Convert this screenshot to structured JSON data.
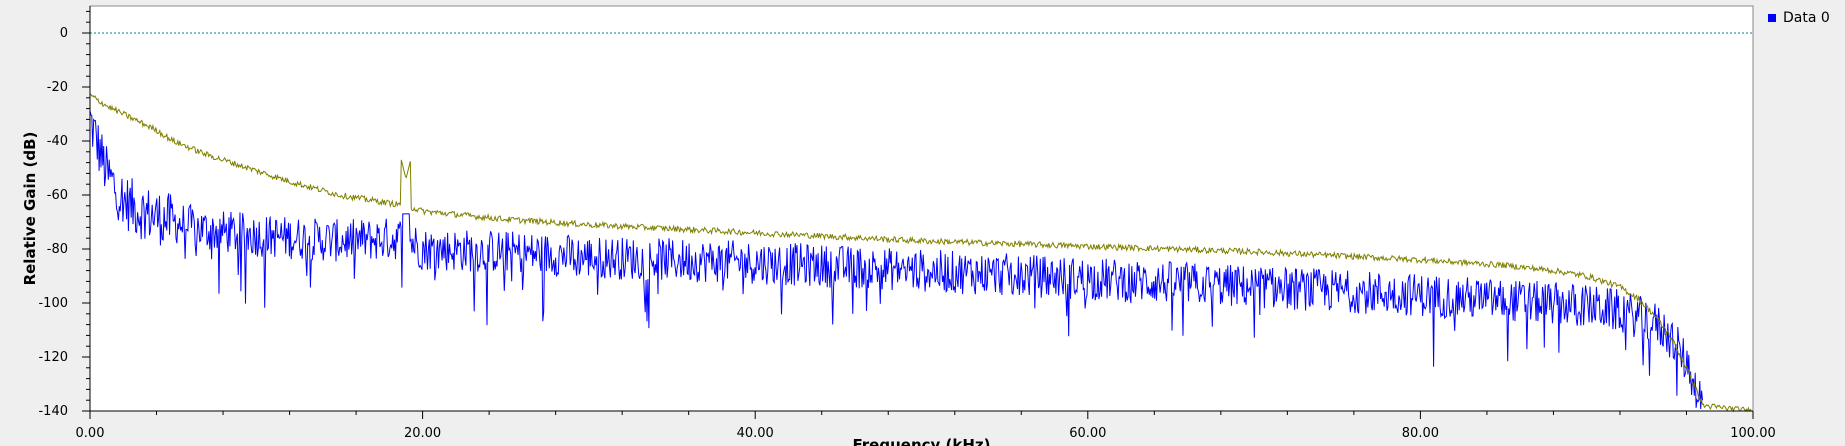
{
  "chart_data": {
    "type": "line",
    "title": "",
    "xlabel": "Frequency (kHz)",
    "ylabel": "Relative Gain (dB)",
    "xlim": [
      0,
      100
    ],
    "ylim": [
      -140,
      10
    ],
    "x_ticks": [
      "0.00",
      "20.00",
      "40.00",
      "60.00",
      "80.00",
      "100.00"
    ],
    "y_ticks": [
      "0",
      "-20",
      "-40",
      "-60",
      "-80",
      "-100",
      "-120",
      "-140"
    ],
    "reference_line": {
      "y": 0,
      "color": "#0a7f9a",
      "style": "dotted"
    },
    "legend": {
      "entries": [
        "Data 0"
      ],
      "position": "top-right"
    },
    "grid": false,
    "series": [
      {
        "name": "Data 0",
        "color": "#0000ff",
        "style": "noisy",
        "x": [
          0,
          1,
          2,
          3,
          4,
          5,
          7,
          10,
          15,
          19,
          20,
          25,
          30,
          40,
          50,
          60,
          70,
          80,
          85,
          90,
          92,
          94,
          95,
          96,
          97
        ],
        "mean": [
          -32,
          -52,
          -62,
          -66,
          -68,
          -70,
          -73,
          -75,
          -77,
          -76,
          -80,
          -81,
          -83,
          -85,
          -88,
          -91,
          -94,
          -97,
          -99,
          -101,
          -103,
          -107,
          -112,
          -122,
          -138
        ],
        "spread": 16
      },
      {
        "name": "",
        "color": "#808000",
        "style": "smooth",
        "x": [
          0,
          1,
          2,
          3,
          4,
          5,
          7,
          10,
          12,
          15,
          19,
          20,
          25,
          30,
          40,
          50,
          60,
          70,
          80,
          85,
          88,
          90,
          92,
          93,
          94,
          95,
          96,
          97,
          100
        ],
        "y": [
          -23,
          -27,
          -30,
          -33,
          -36,
          -40,
          -45,
          -51,
          -55,
          -60,
          -64,
          -66,
          -69,
          -71,
          -74,
          -77,
          -79,
          -81,
          -84,
          -86,
          -88,
          -90,
          -94,
          -98,
          -104,
          -112,
          -124,
          -138,
          -140
        ],
        "peak": {
          "x": 19,
          "y": -54
        }
      }
    ]
  }
}
